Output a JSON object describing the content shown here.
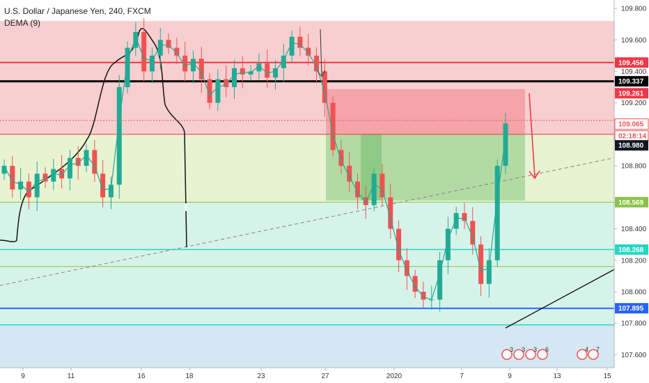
{
  "header": {
    "title": "U.S. Dollar / Japanese Yen, 240, FXCM",
    "indicator": "DEMA (9)"
  },
  "colors": {
    "up": "#22ab94",
    "down": "#ef5350",
    "red_level": "#f23645",
    "black_level": "#000000",
    "teal_level": "#26d7c4",
    "blue_level": "#2962ff",
    "green_level": "#8bc34a"
  },
  "chart_data": {
    "type": "candlestick",
    "title": "U.S. Dollar / Japanese Yen, 240, FXCM",
    "indicator": "DEMA (9)",
    "x_ticks": [
      "9",
      "11",
      "16",
      "18",
      "23",
      "27",
      "2020",
      "7",
      "9",
      "13",
      "15"
    ],
    "y_ticks": [
      "109.800",
      "109.600",
      "109.400",
      "109.200",
      "108.800",
      "108.400",
      "108.200",
      "108.000",
      "107.800",
      "107.600"
    ],
    "ylim": [
      107.5,
      109.84
    ],
    "price_tags": [
      {
        "value": "109.456",
        "price": 109.456,
        "style": "red"
      },
      {
        "value": "109.337",
        "price": 109.337,
        "style": "black"
      },
      {
        "value": "109.261",
        "price": 109.261,
        "style": "red"
      },
      {
        "value": "109.065",
        "price": 109.065,
        "style": "outline-red"
      },
      {
        "value": "02:18:14",
        "price": 108.99,
        "style": "outline-red"
      },
      {
        "value": "108.980",
        "price": 108.93,
        "style": "dark"
      },
      {
        "value": "108.569",
        "price": 108.569,
        "style": "green"
      },
      {
        "value": "108.268",
        "price": 108.268,
        "style": "teal"
      },
      {
        "value": "107.895",
        "price": 107.895,
        "style": "blue"
      }
    ],
    "horizontal_levels": [
      {
        "price": 109.456,
        "color": "red"
      },
      {
        "price": 109.337,
        "color": "black"
      },
      {
        "price": 109.0,
        "color": "red-thin"
      },
      {
        "price": 108.569,
        "color": "green"
      },
      {
        "price": 108.268,
        "color": "teal"
      },
      {
        "price": 108.16,
        "color": "green"
      },
      {
        "price": 107.895,
        "color": "blue"
      },
      {
        "price": 107.79,
        "color": "teal"
      }
    ],
    "zones": [
      {
        "from": 109.0,
        "to": 109.72,
        "color": "red"
      },
      {
        "from": 108.569,
        "to": 109.0,
        "color": "lime"
      },
      {
        "from": 107.79,
        "to": 108.569,
        "color": "mint"
      },
      {
        "from": 107.5,
        "to": 107.79,
        "color": "blue"
      }
    ],
    "position_box": {
      "target": 108.569,
      "entry": 109.0,
      "stop": 109.29
    },
    "event_markers": [
      "3",
      "3",
      "3",
      "6",
      "4",
      "7"
    ],
    "closes": [
      108.8,
      108.65,
      108.7,
      108.6,
      108.75,
      108.7,
      108.78,
      108.72,
      108.85,
      108.8,
      108.9,
      108.75,
      108.6,
      108.68,
      109.3,
      109.55,
      109.65,
      109.4,
      109.5,
      109.6,
      109.55,
      109.5,
      109.4,
      109.48,
      109.35,
      109.2,
      109.35,
      109.3,
      109.42,
      109.38,
      109.4,
      109.45,
      109.36,
      109.42,
      109.5,
      109.62,
      109.55,
      109.5,
      109.4,
      109.2,
      108.9,
      108.8,
      108.7,
      108.6,
      108.55,
      108.75,
      108.6,
      108.4,
      108.2,
      108.1,
      108.0,
      107.95,
      107.95,
      108.2,
      108.4,
      108.5,
      108.45,
      108.3,
      108.05,
      108.2,
      108.8,
      109.07
    ]
  }
}
